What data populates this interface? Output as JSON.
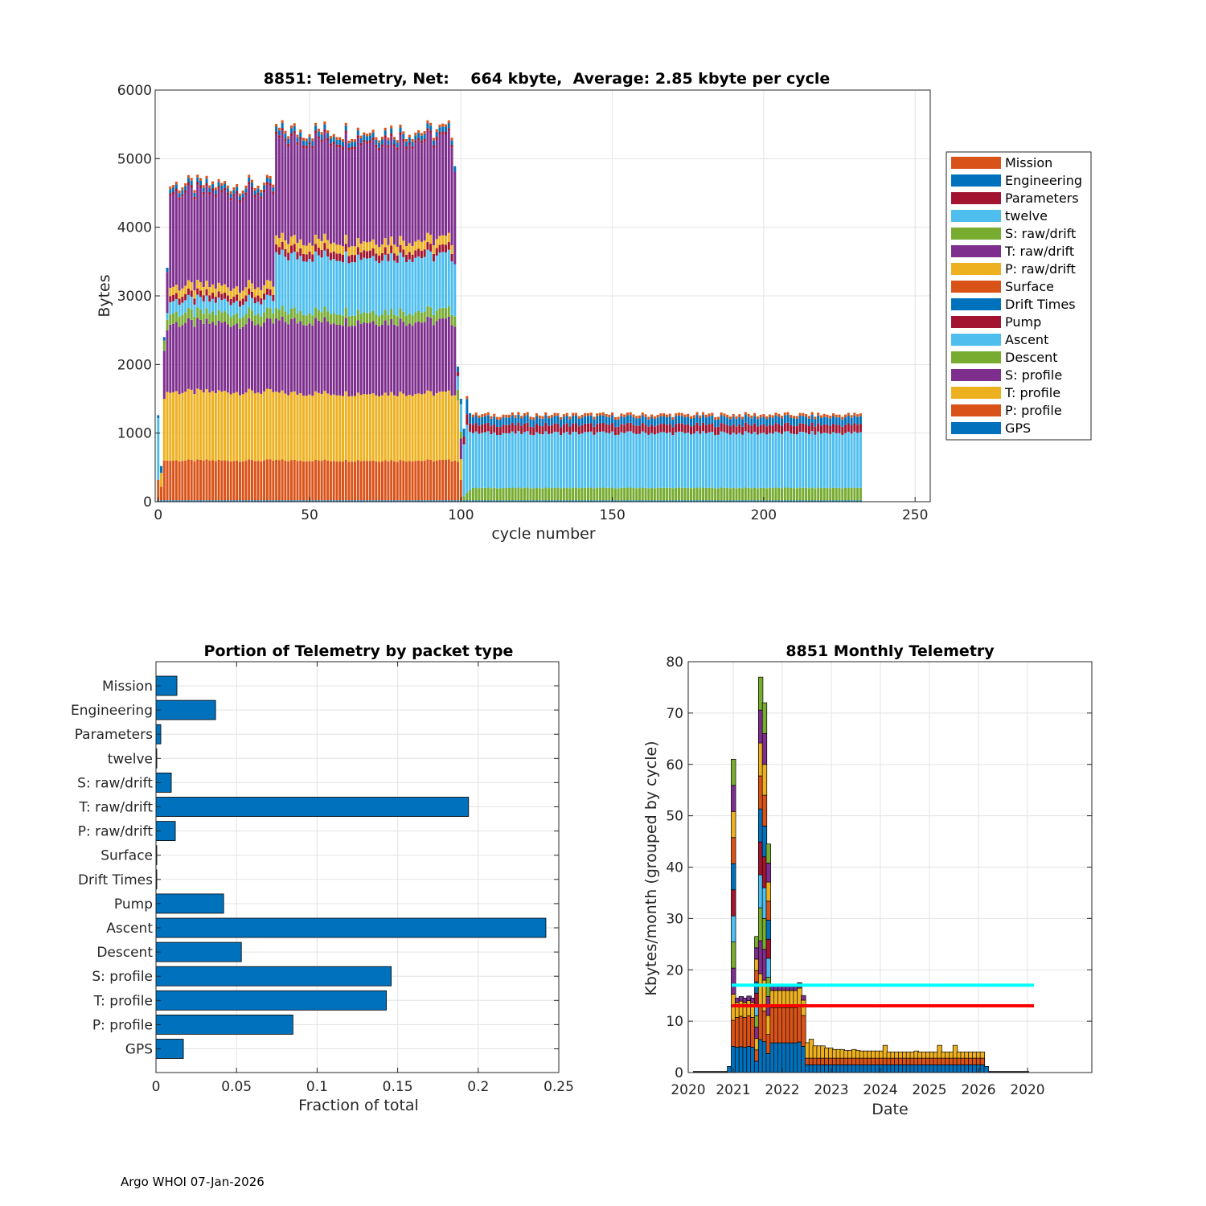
{
  "footer": "Argo WHOI 07-Jan-2026",
  "colors": {
    "blue": "#0072BD",
    "orange": "#D95319",
    "yellow": "#EDB120",
    "purple": "#7E2F8E",
    "green": "#77AC30",
    "cyan": "#4DBEEE",
    "darkred": "#A2142F",
    "line_cyan": "#00FFFF",
    "line_red": "#FF0000"
  },
  "chart_data": [
    {
      "type": "bar",
      "stacked": true,
      "title": "8851: Telemetry, Net:    664 kbyte,  Average: 2.85 kbyte per cycle",
      "xlabel": "cycle number",
      "ylabel": "Bytes",
      "xlim": [
        -1,
        255
      ],
      "ylim": [
        0,
        6000
      ],
      "xticks": [
        0,
        50,
        100,
        150,
        200,
        250
      ],
      "yticks": [
        0,
        1000,
        2000,
        3000,
        4000,
        5000,
        6000
      ],
      "legend_position": "outside-right",
      "legend": [
        {
          "name": "Mission",
          "color": "#D95319"
        },
        {
          "name": "Engineering",
          "color": "#0072BD"
        },
        {
          "name": "Parameters",
          "color": "#A2142F"
        },
        {
          "name": "twelve",
          "color": "#4DBEEE"
        },
        {
          "name": "S: raw/drift",
          "color": "#77AC30"
        },
        {
          "name": "T: raw/drift",
          "color": "#7E2F8E"
        },
        {
          "name": "P: raw/drift",
          "color": "#EDB120"
        },
        {
          "name": "Surface",
          "color": "#D95319"
        },
        {
          "name": "Drift Times",
          "color": "#0072BD"
        },
        {
          "name": "Pump",
          "color": "#A2142F"
        },
        {
          "name": "Ascent",
          "color": "#4DBEEE"
        },
        {
          "name": "Descent",
          "color": "#77AC30"
        },
        {
          "name": "S: profile",
          "color": "#7E2F8E"
        },
        {
          "name": "T: profile",
          "color": "#EDB120"
        },
        {
          "name": "P: profile",
          "color": "#D95319"
        },
        {
          "name": "GPS",
          "color": "#0072BD"
        }
      ],
      "cycle_groups": [
        {
          "cycles": [
            4,
            38
          ],
          "stack": {
            "GPS": 20,
            "P: profile": 580,
            "T: profile": 1000,
            "S: profile": 1000,
            "Descent": 150,
            "Ascent": 180,
            "Pump": 90,
            "P: raw/drift": 120,
            "T: raw/drift": 1350,
            "Parameters": 40,
            "Engineering": 60,
            "Mission": 40
          }
        },
        {
          "cycles": [
            39,
            97
          ],
          "stack": {
            "GPS": 20,
            "P: profile": 580,
            "T: profile": 980,
            "S: profile": 1050,
            "Descent": 150,
            "Ascent": 800,
            "Pump": 110,
            "P: raw/drift": 130,
            "T: raw/drift": 1450,
            "Parameters": 40,
            "Engineering": 70,
            "Mission": 40
          }
        },
        {
          "cycles": [
            104,
            232
          ],
          "stack": {
            "GPS": 20,
            "Descent": 180,
            "Ascent": 800,
            "Pump": 120,
            "Engineering": 110,
            "Mission": 40
          }
        }
      ]
    },
    {
      "type": "bar",
      "orientation": "horizontal",
      "title": "Portion of Telemetry by packet type",
      "xlabel": "Fraction of total",
      "ylabel": "",
      "xlim": [
        0,
        0.25
      ],
      "xticks": [
        "0",
        "0.05",
        "0.1",
        "0.15",
        "0.2",
        "0.25"
      ],
      "categories": [
        "Mission",
        "Engineering",
        "Parameters",
        "twelve",
        "S: raw/drift",
        "T: raw/drift",
        "P: raw/drift",
        "Surface",
        "Drift Times",
        "Pump",
        "Ascent",
        "Descent",
        "S: profile",
        "T: profile",
        "P: profile",
        "GPS"
      ],
      "values": [
        0.013,
        0.037,
        0.003,
        0.0005,
        0.0095,
        0.194,
        0.012,
        0.0005,
        0.0005,
        0.042,
        0.242,
        0.053,
        0.146,
        0.143,
        0.085,
        0.017
      ]
    },
    {
      "type": "bar",
      "stacked": true,
      "title": "8851 Monthly Telemetry",
      "xlabel": "Date",
      "ylabel": "Kbytes/month (grouped by cycle)",
      "ylim": [
        0,
        80
      ],
      "yticks": [
        0,
        10,
        20,
        30,
        40,
        50,
        60,
        70,
        80
      ],
      "xticks": [
        "2020",
        "2021",
        "2022",
        "2023",
        "2024",
        "2025",
        "2026",
        "2020"
      ],
      "xlim_years": [
        2020.0,
        2028.3
      ],
      "reference_lines": [
        {
          "value": 17,
          "color": "#00FFFF"
        },
        {
          "value": 13,
          "color": "#FF0000"
        }
      ],
      "months": [
        {
          "t": 2020.85,
          "v": 1.2
        },
        {
          "t": 2020.93,
          "v": 61
        },
        {
          "t": 2021.01,
          "v": 14.5
        },
        {
          "t": 2021.09,
          "v": 14.8
        },
        {
          "t": 2021.17,
          "v": 14.5
        },
        {
          "t": 2021.25,
          "v": 14.9
        },
        {
          "t": 2021.33,
          "v": 14.5
        },
        {
          "t": 2021.41,
          "v": 26.5
        },
        {
          "t": 2021.49,
          "v": 77
        },
        {
          "t": 2021.57,
          "v": 72
        },
        {
          "t": 2021.65,
          "v": 44.5
        },
        {
          "t": 2021.73,
          "v": 17
        },
        {
          "t": 2021.81,
          "v": 17
        },
        {
          "t": 2021.89,
          "v": 17
        },
        {
          "t": 2021.97,
          "v": 17
        },
        {
          "t": 2022.05,
          "v": 17
        },
        {
          "t": 2022.13,
          "v": 17
        },
        {
          "t": 2022.21,
          "v": 17
        },
        {
          "t": 2022.29,
          "v": 17.5
        },
        {
          "t": 2022.37,
          "v": 15
        },
        {
          "t": 2022.45,
          "v": 5.8
        },
        {
          "t": 2022.53,
          "v": 6.5
        },
        {
          "t": 2022.61,
          "v": 5.2
        },
        {
          "t": 2022.69,
          "v": 5.2
        },
        {
          "t": 2022.77,
          "v": 5.2
        },
        {
          "t": 2022.85,
          "v": 4.8
        },
        {
          "t": 2022.93,
          "v": 4.8
        },
        {
          "t": 2023.01,
          "v": 4.5
        },
        {
          "t": 2023.09,
          "v": 4.5
        },
        {
          "t": 2023.17,
          "v": 4.5
        },
        {
          "t": 2023.25,
          "v": 4.3
        },
        {
          "t": 2023.33,
          "v": 4.3
        },
        {
          "t": 2023.41,
          "v": 4.5
        },
        {
          "t": 2023.49,
          "v": 4.3
        },
        {
          "t": 2023.57,
          "v": 4.2
        },
        {
          "t": 2023.65,
          "v": 4.2
        },
        {
          "t": 2023.73,
          "v": 4.2
        },
        {
          "t": 2023.81,
          "v": 4.2
        },
        {
          "t": 2023.89,
          "v": 4.2
        },
        {
          "t": 2023.97,
          "v": 4.2
        },
        {
          "t": 2024.05,
          "v": 5.3
        },
        {
          "t": 2024.13,
          "v": 4
        },
        {
          "t": 2024.21,
          "v": 4
        },
        {
          "t": 2024.29,
          "v": 4
        },
        {
          "t": 2024.37,
          "v": 4
        },
        {
          "t": 2024.45,
          "v": 4
        },
        {
          "t": 2024.53,
          "v": 4
        },
        {
          "t": 2024.61,
          "v": 4
        },
        {
          "t": 2024.69,
          "v": 4.2
        },
        {
          "t": 2024.77,
          "v": 4
        },
        {
          "t": 2024.85,
          "v": 4
        },
        {
          "t": 2024.93,
          "v": 4
        },
        {
          "t": 2025.01,
          "v": 4
        },
        {
          "t": 2025.09,
          "v": 4
        },
        {
          "t": 2025.17,
          "v": 5.3
        },
        {
          "t": 2025.25,
          "v": 4
        },
        {
          "t": 2025.33,
          "v": 4
        },
        {
          "t": 2025.41,
          "v": 4
        },
        {
          "t": 2025.49,
          "v": 5.3
        },
        {
          "t": 2025.57,
          "v": 4
        },
        {
          "t": 2025.65,
          "v": 4
        },
        {
          "t": 2025.73,
          "v": 4
        },
        {
          "t": 2025.81,
          "v": 4
        },
        {
          "t": 2025.89,
          "v": 4
        },
        {
          "t": 2025.97,
          "v": 4
        },
        {
          "t": 2026.05,
          "v": 4
        },
        {
          "t": 2026.13,
          "v": 1.2
        }
      ]
    }
  ]
}
